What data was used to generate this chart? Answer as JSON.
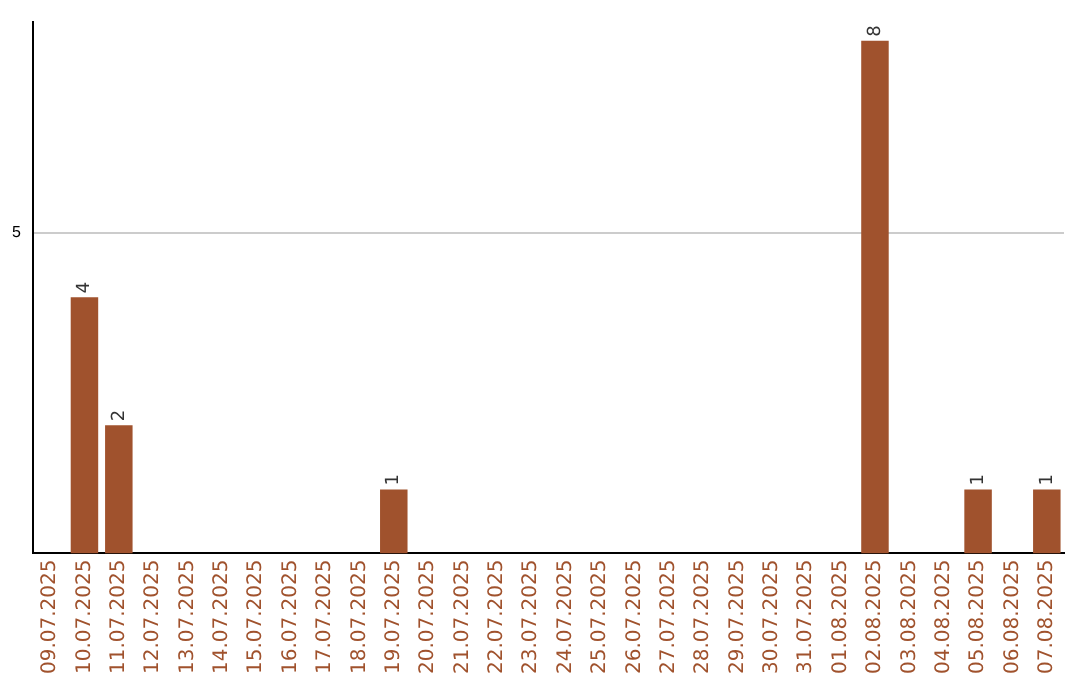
{
  "chart_data": {
    "type": "bar",
    "categories": [
      "09.07.2025",
      "10.07.2025",
      "11.07.2025",
      "12.07.2025",
      "13.07.2025",
      "14.07.2025",
      "15.07.2025",
      "16.07.2025",
      "17.07.2025",
      "18.07.2025",
      "19.07.2025",
      "20.07.2025",
      "21.07.2025",
      "22.07.2025",
      "23.07.2025",
      "24.07.2025",
      "25.07.2025",
      "26.07.2025",
      "27.07.2025",
      "28.07.2025",
      "29.07.2025",
      "30.07.2025",
      "31.07.2025",
      "01.08.2025",
      "02.08.2025",
      "03.08.2025",
      "04.08.2025",
      "05.08.2025",
      "06.08.2025",
      "07.08.2025"
    ],
    "values": [
      0,
      4,
      2,
      0,
      0,
      0,
      0,
      0,
      0,
      0,
      1,
      0,
      0,
      0,
      0,
      0,
      0,
      0,
      0,
      0,
      0,
      0,
      0,
      0,
      8,
      0,
      0,
      1,
      0,
      1
    ],
    "color": "#a0522d",
    "ylim": [
      0,
      8.3
    ],
    "yticks": [
      5
    ],
    "grid": "y",
    "value_labels": [
      null,
      "4",
      "2",
      null,
      null,
      null,
      null,
      null,
      null,
      null,
      "1",
      null,
      null,
      null,
      null,
      null,
      null,
      null,
      null,
      null,
      null,
      null,
      null,
      null,
      "8",
      null,
      null,
      "1",
      null,
      "1"
    ],
    "legend": false
  }
}
